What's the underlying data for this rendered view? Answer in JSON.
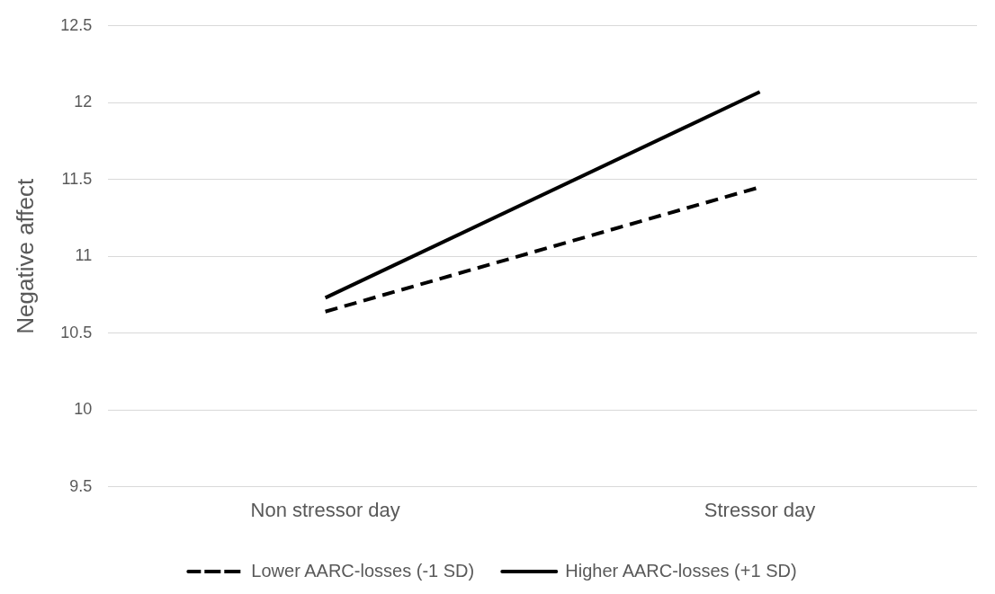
{
  "chart_data": {
    "type": "line",
    "ylabel": "Negative affect",
    "categories": [
      "Non stressor day",
      "Stressor day"
    ],
    "series": [
      {
        "name": "Lower AARC-losses (-1 SD)",
        "color": "#000000",
        "line_style": "dashed",
        "values": [
          10.64,
          11.45
        ]
      },
      {
        "name": "Higher AARC-losses (+1 SD)",
        "color": "#000000",
        "line_style": "solid",
        "values": [
          10.73,
          12.07
        ]
      }
    ],
    "ylim": [
      9.5,
      12.5
    ],
    "yticks": [
      9.5,
      10,
      10.5,
      11,
      11.5,
      12,
      12.5
    ],
    "grid": "y",
    "legend": "bottom",
    "marker": "none"
  }
}
